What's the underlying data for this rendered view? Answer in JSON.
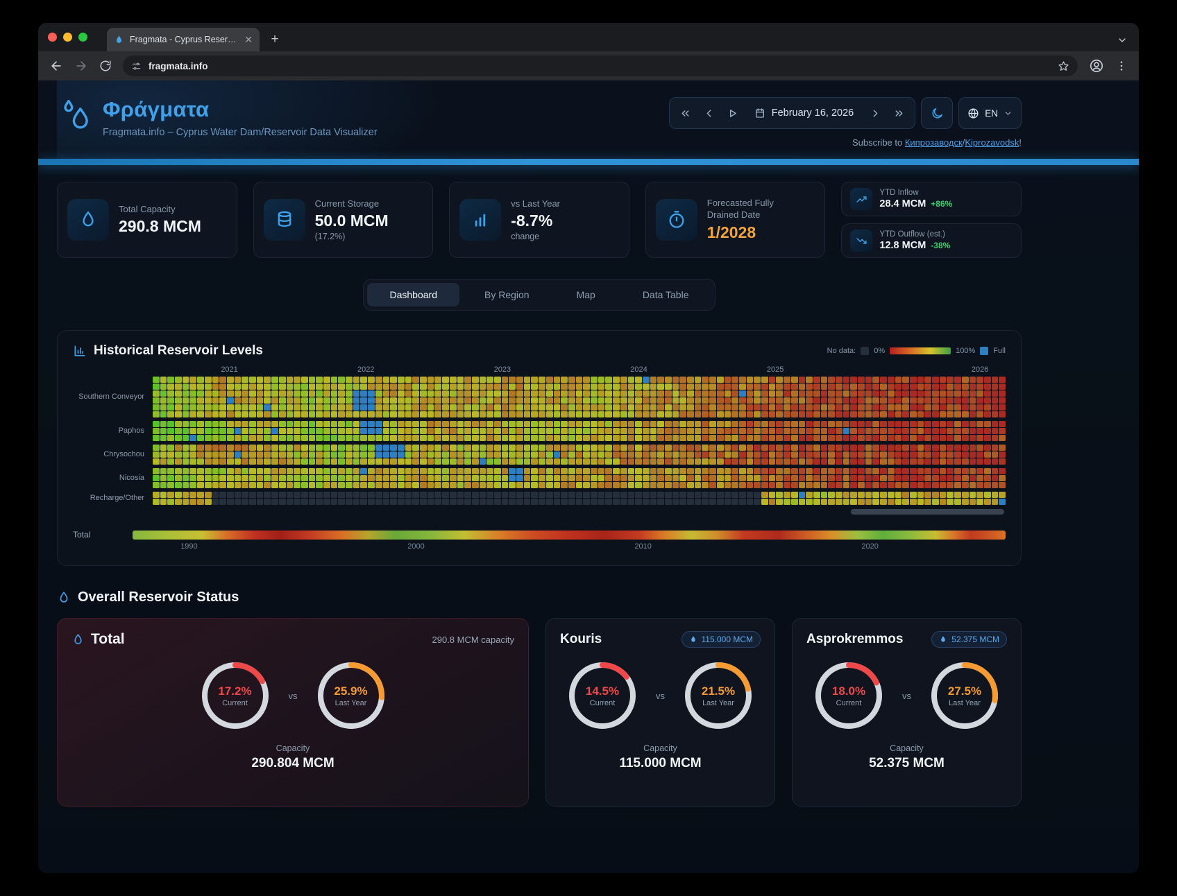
{
  "browser": {
    "tab_title": "Fragmata - Cyprus Reservoir",
    "url": "fragmata.info",
    "traffic_lights": {
      "close": "#ff5f57",
      "minimize": "#febc2e",
      "zoom": "#28c840"
    }
  },
  "header": {
    "title": "Φράγματα",
    "subtitle": "Fragmata.info – Cyprus Water Dam/Reservoir Data Visualizer",
    "date_label": "February 16, 2026",
    "language": "EN",
    "subscribe": {
      "prefix": "Subscribe to ",
      "link1": "Кипрозаводск",
      "separator": "/",
      "link2": "Kiprozavodsk",
      "suffix": "!"
    }
  },
  "colors": {
    "accent_blue": "#3fa1ea",
    "warning_orange": "#f2a33c",
    "positive_green": "#3ecf6e",
    "current_red": "#ef4848",
    "last_year_orange": "#f59b31"
  },
  "kpis": [
    {
      "icon": "water-drop",
      "label": "Total Capacity",
      "value": "290.8 MCM"
    },
    {
      "icon": "database",
      "label": "Current Storage",
      "value": "50.0 MCM",
      "sub": "(17.2%)"
    },
    {
      "icon": "bar-chart",
      "label": "vs Last Year",
      "value": "-8.7%",
      "sub": "change"
    },
    {
      "icon": "stopwatch",
      "label": "Forecasted Fully Drained Date",
      "value": "1/2028",
      "value_style": "color:#f2a33c"
    }
  ],
  "ytd": [
    {
      "icon": "trend-up",
      "label": "YTD Inflow",
      "value": "28.4 MCM",
      "delta": "+86%",
      "delta_style": "color:#3ecf6e"
    },
    {
      "icon": "trend-down",
      "label": "YTD Outflow (est.)",
      "value": "12.8 MCM",
      "delta": "-38%",
      "delta_style": "color:#3ecf6e"
    }
  ],
  "view_tabs": [
    {
      "label": "Dashboard",
      "active": true
    },
    {
      "label": "By Region",
      "active": false
    },
    {
      "label": "Map",
      "active": false
    },
    {
      "label": "Data Table",
      "active": false
    }
  ],
  "heatmap_panel": {
    "title": "Historical Reservoir Levels"
  },
  "status": {
    "heading": "Overall Reservoir Status",
    "total_card": {
      "title": "Total",
      "capacity_note": "290.8 MCM capacity",
      "vs": "vs",
      "current": {
        "display": "17.2%",
        "value": 17.2,
        "label": "Current",
        "color": "#ef4848"
      },
      "last_year": {
        "display": "25.9%",
        "value": 25.9,
        "label": "Last Year",
        "color": "#f59b31"
      },
      "capacity_label": "Capacity",
      "capacity_value": "290.804 MCM"
    },
    "reservoir_cards": [
      {
        "title": "Kouris",
        "badge": "115.000 MCM",
        "vs": "vs",
        "current": {
          "display": "14.5%",
          "value": 14.5,
          "label": "Current",
          "color": "#ef4848"
        },
        "last_year": {
          "display": "21.5%",
          "value": 21.5,
          "label": "Last Year",
          "color": "#f59b31"
        },
        "capacity_label": "Capacity",
        "capacity_value": "115.000 MCM"
      },
      {
        "title": "Asprokremmos",
        "badge": "52.375 MCM",
        "vs": "vs",
        "current": {
          "display": "18.0%",
          "value": 18.0,
          "label": "Current",
          "color": "#ef4848"
        },
        "last_year": {
          "display": "27.5%",
          "value": 27.5,
          "label": "Last Year",
          "color": "#f59b31"
        },
        "capacity_label": "Capacity",
        "capacity_value": "52.375 MCM"
      }
    ]
  },
  "chart_data": [
    {
      "type": "heatmap",
      "title": "Historical Reservoir Levels",
      "x_tick_labels": [
        "2021",
        "2022",
        "2023",
        "2024",
        "2025",
        "2026"
      ],
      "x_tick_pos": [
        8,
        24,
        40,
        56,
        72,
        96
      ],
      "columns": 115,
      "value_meaning": "approximate % of reservoir capacity per period (0% red → 100% green, blue = full, grey = no data)",
      "legend": {
        "no_data": "No data:",
        "min": "0%",
        "max": "100%",
        "full": "Full",
        "no_data_color": "#252f3c",
        "full_color": "#2e7fc0",
        "gradient": [
          "#b62020",
          "#d86a26",
          "#d8c42e",
          "#3da045"
        ]
      },
      "rows": [
        {
          "label": "Southern Conveyor",
          "lanes": 6,
          "noise": 0.3,
          "profile": [
            0.72,
            0.6,
            0.42,
            0.5,
            0.62,
            0.58,
            0.5,
            0.44,
            0.5,
            0.46,
            0.42,
            0.47,
            0.52,
            0.45,
            0.4,
            0.33,
            0.28,
            0.22,
            0.18,
            0.14,
            0.1,
            0.1,
            0.1,
            0.08
          ],
          "full_patches": [
            [
              27,
              29,
              2,
              5
            ]
          ]
        },
        {
          "label": "Paphos",
          "lanes": 3,
          "noise": 0.3,
          "profile": [
            0.8,
            0.72,
            0.62,
            0.55,
            0.68,
            0.72,
            0.58,
            0.48,
            0.42,
            0.45,
            0.5,
            0.55,
            0.52,
            0.45,
            0.38,
            0.32,
            0.26,
            0.18,
            0.13,
            0.1,
            0.09,
            0.1,
            0.1,
            0.08
          ],
          "full_patches": [
            [
              28,
              30,
              0,
              2
            ],
            [
              11,
              11,
              1,
              2
            ]
          ]
        },
        {
          "label": "Chrysochou",
          "lanes": 3,
          "noise": 0.34,
          "profile": [
            0.58,
            0.48,
            0.38,
            0.42,
            0.55,
            0.62,
            0.6,
            0.52,
            0.5,
            0.56,
            0.54,
            0.48,
            0.42,
            0.38,
            0.33,
            0.28,
            0.22,
            0.18,
            0.14,
            0.1,
            0.09,
            0.09,
            0.1,
            0.08
          ],
          "full_patches": [
            [
              30,
              33,
              0,
              2
            ],
            [
              54,
              54,
              1,
              2
            ]
          ]
        },
        {
          "label": "Nicosia",
          "lanes": 3,
          "noise": 0.3,
          "profile": [
            0.74,
            0.66,
            0.55,
            0.5,
            0.58,
            0.56,
            0.48,
            0.44,
            0.5,
            0.46,
            0.5,
            0.44,
            0.4,
            0.44,
            0.4,
            0.34,
            0.3,
            0.24,
            0.18,
            0.14,
            0.11,
            0.1,
            0.12,
            0.14
          ],
          "full_patches": [
            [
              28,
              28,
              0,
              1
            ],
            [
              48,
              49,
              0,
              2
            ]
          ]
        },
        {
          "label": "Recharge/Other",
          "lanes": 2,
          "noise": 0.28,
          "profile": [
            0.58,
            0.5,
            null,
            null,
            null,
            null,
            null,
            null,
            null,
            null,
            null,
            null,
            null,
            null,
            null,
            null,
            null,
            0.48,
            0.55,
            0.5,
            0.44,
            0.5,
            0.46,
            0.4
          ],
          "full_patches": [
            [
              114,
              114,
              1,
              2
            ]
          ]
        }
      ]
    },
    {
      "type": "gradient-strip",
      "label": "Total",
      "x_tick_labels": [
        "1990",
        "2000",
        "2010",
        "2020"
      ],
      "x_tick_pos": [
        5.5,
        31.5,
        57.5,
        83.5
      ],
      "stops": [
        [
          0,
          "#86b83e"
        ],
        [
          4,
          "#aabf37"
        ],
        [
          8,
          "#c8bf32"
        ],
        [
          11,
          "#d86a28"
        ],
        [
          14,
          "#c03020"
        ],
        [
          17,
          "#a02018"
        ],
        [
          20,
          "#c23822"
        ],
        [
          24,
          "#d96f26"
        ],
        [
          27,
          "#b5a52c"
        ],
        [
          30,
          "#6aa838"
        ],
        [
          34,
          "#84b63c"
        ],
        [
          38,
          "#c2bf33"
        ],
        [
          42,
          "#d87e28"
        ],
        [
          46,
          "#cc4a22"
        ],
        [
          50,
          "#c0311e"
        ],
        [
          54,
          "#a8241a"
        ],
        [
          58,
          "#c33a20"
        ],
        [
          61,
          "#d97e27"
        ],
        [
          64,
          "#c4bb32"
        ],
        [
          67,
          "#d08c2a"
        ],
        [
          70,
          "#c43a20"
        ],
        [
          74,
          "#ae2a1c"
        ],
        [
          77,
          "#cc5a24"
        ],
        [
          80,
          "#d98e28"
        ],
        [
          83,
          "#9cc040"
        ],
        [
          86,
          "#5fae3c"
        ],
        [
          89,
          "#8abb3e"
        ],
        [
          92,
          "#c8bd32"
        ],
        [
          94,
          "#d87828"
        ],
        [
          96,
          "#c23a20"
        ],
        [
          98,
          "#cc5222"
        ],
        [
          100,
          "#d97426"
        ]
      ]
    },
    {
      "type": "donut-gauges",
      "groups": [
        {
          "name": "Total",
          "current_pct": 17.2,
          "last_year_pct": 25.9,
          "capacity_mcm": 290.804
        },
        {
          "name": "Kouris",
          "current_pct": 14.5,
          "last_year_pct": 21.5,
          "capacity_mcm": 115.0
        },
        {
          "name": "Asprokremmos",
          "current_pct": 18.0,
          "last_year_pct": 27.5,
          "capacity_mcm": 52.375
        }
      ]
    }
  ]
}
